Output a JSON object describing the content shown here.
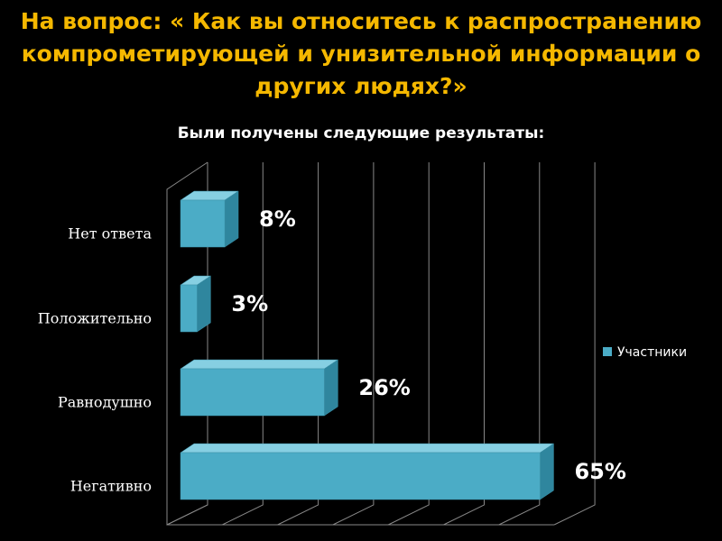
{
  "chart_data": {
    "type": "bar3d-horizontal",
    "title": "На вопрос: « Как вы относитесь к распространению компрометирующей и унизительной информации о других людях?»",
    "subtitle": "Были получены следующие результаты:",
    "categories": [
      "Нет ответа",
      "Положительно",
      "Равнодушно",
      "Негативно"
    ],
    "series": [
      {
        "name": "Участники",
        "color": "#4bacc6",
        "values": [
          8,
          3,
          26,
          65
        ],
        "value_labels": [
          "8%",
          "3%",
          "26%",
          "65%"
        ]
      }
    ],
    "xlim": [
      0,
      70
    ],
    "xticks": [
      0,
      10,
      20,
      30,
      40,
      50,
      60,
      70
    ],
    "grid": true,
    "legend": "right"
  }
}
